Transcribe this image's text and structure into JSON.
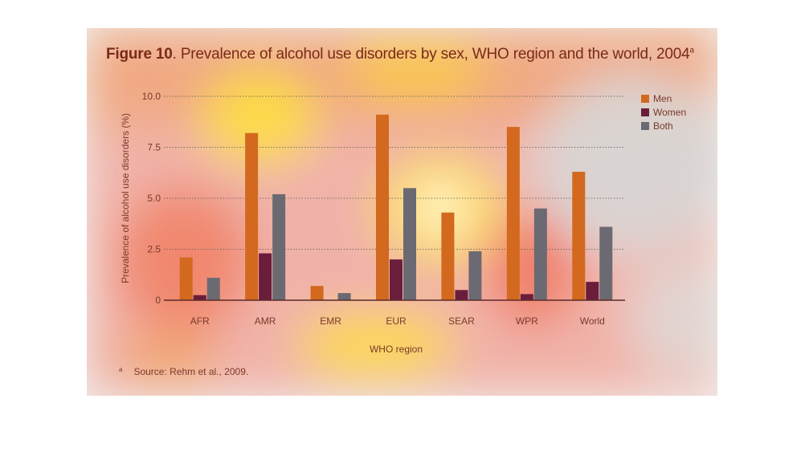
{
  "title": {
    "figure": "Figure 10",
    "text": ". Prevalence of alcohol use disorders by sex, WHO region and the world, 2004",
    "sup": "a"
  },
  "footnote": {
    "mark": "a",
    "text": "Source: Rehm et al., 2009."
  },
  "colors": {
    "men": "#d2691e",
    "women": "#6b1d3c",
    "both": "#6b6a72",
    "grid": "#555555",
    "text": "#7a3a2a",
    "axis": "#5a2a2a"
  },
  "chart_data": {
    "type": "bar",
    "xlabel": "WHO region",
    "ylabel": "Prevalence of alcohol use disorders (%)",
    "ylim": [
      0,
      10
    ],
    "yticks": [
      "0",
      "2.5",
      "5.0",
      "7.5",
      "10.0"
    ],
    "grid": true,
    "legend_position": "top-right",
    "categories": [
      "AFR",
      "AMR",
      "EMR",
      "EUR",
      "SEAR",
      "WPR",
      "World"
    ],
    "series": [
      {
        "name": "Men",
        "values": [
          2.1,
          8.2,
          0.7,
          9.1,
          4.3,
          8.5,
          6.3
        ]
      },
      {
        "name": "Women",
        "values": [
          0.25,
          2.3,
          0.0,
          2.0,
          0.5,
          0.3,
          0.9
        ]
      },
      {
        "name": "Both",
        "values": [
          1.1,
          5.2,
          0.35,
          5.5,
          2.4,
          4.5,
          3.6
        ]
      }
    ]
  }
}
